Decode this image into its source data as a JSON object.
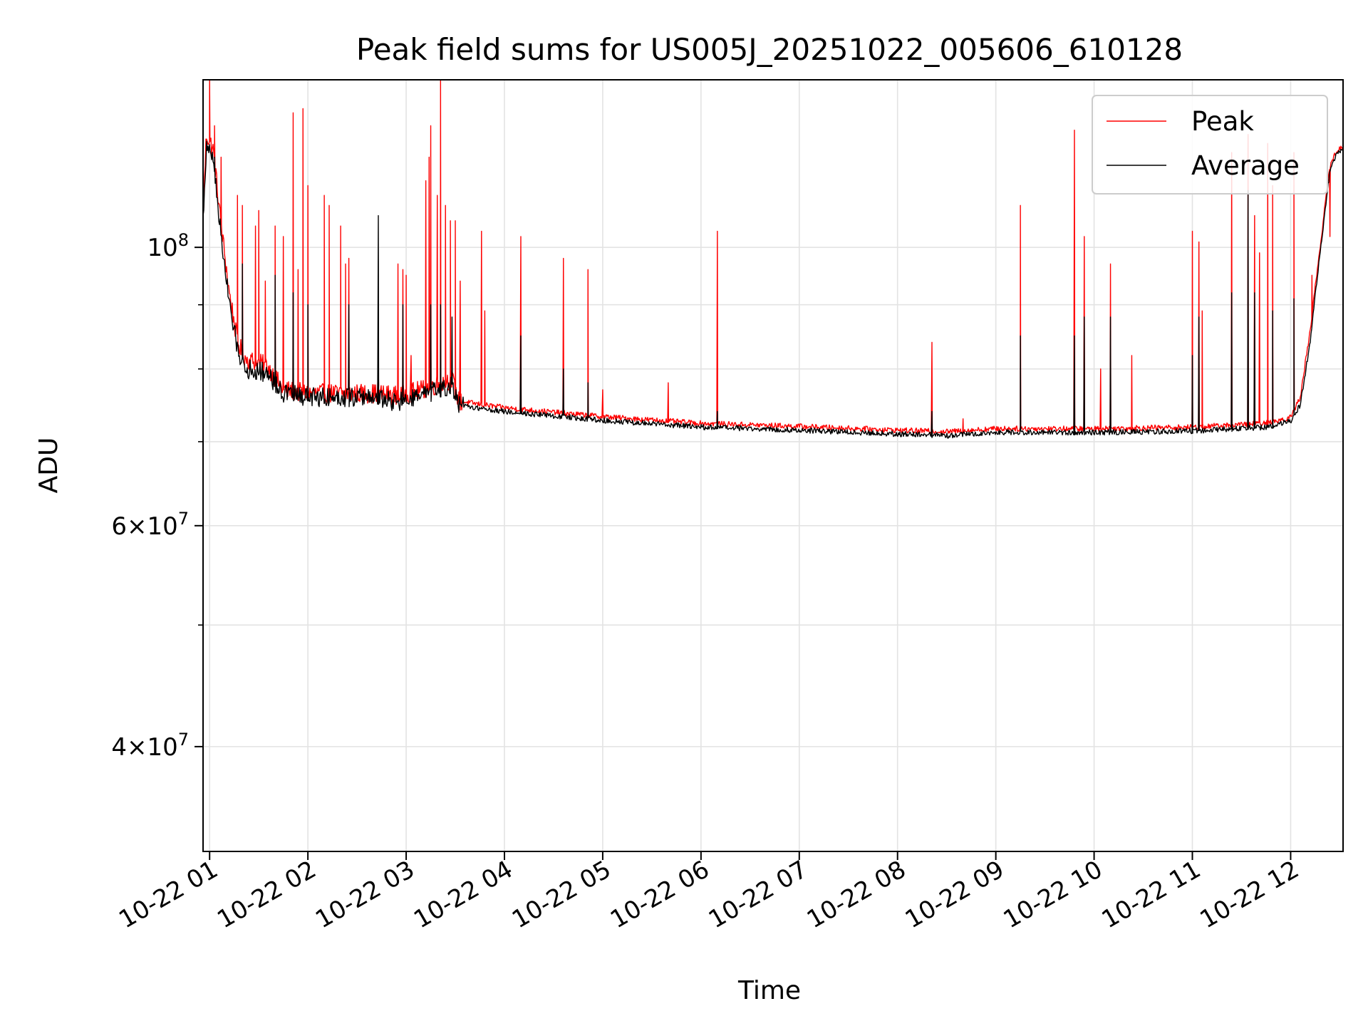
{
  "chart_data": {
    "type": "line",
    "title": "Peak field sums for US005J_20251022_005606_610128",
    "xlabel": "Time",
    "ylabel": "ADU",
    "yscale": "log",
    "ylim": [
      33000000,
      136000000
    ],
    "xlim": [
      "2025-10-22T00:56",
      "2025-10-22T12:32"
    ],
    "grid": true,
    "legend_position": "top-right",
    "x_ticks": [
      {
        "t": "2025-10-22T01:00",
        "label": "10-22 01"
      },
      {
        "t": "2025-10-22T02:00",
        "label": "10-22 02"
      },
      {
        "t": "2025-10-22T03:00",
        "label": "10-22 03"
      },
      {
        "t": "2025-10-22T04:00",
        "label": "10-22 04"
      },
      {
        "t": "2025-10-22T05:00",
        "label": "10-22 05"
      },
      {
        "t": "2025-10-22T06:00",
        "label": "10-22 06"
      },
      {
        "t": "2025-10-22T07:00",
        "label": "10-22 07"
      },
      {
        "t": "2025-10-22T08:00",
        "label": "10-22 08"
      },
      {
        "t": "2025-10-22T09:00",
        "label": "10-22 09"
      },
      {
        "t": "2025-10-22T10:00",
        "label": "10-22 10"
      },
      {
        "t": "2025-10-22T11:00",
        "label": "10-22 11"
      },
      {
        "t": "2025-10-22T12:00",
        "label": "10-22 12"
      }
    ],
    "y_major_ticks": [
      {
        "v": 40000000,
        "base": "4",
        "exp": "7"
      },
      {
        "v": 60000000,
        "base": "6",
        "exp": "7"
      },
      {
        "v": 100000000,
        "base": "",
        "exp": "8"
      }
    ],
    "y_minor_ticks": [
      50000000,
      70000000,
      80000000,
      90000000
    ],
    "series": [
      {
        "name": "Peak",
        "color": "#ff0000",
        "baseline": [
          [
            "2025-10-22T00:56",
            105000000
          ],
          [
            "2025-10-22T00:58",
            123000000
          ],
          [
            "2025-10-22T01:02",
            120000000
          ],
          [
            "2025-10-22T01:07",
            104000000
          ],
          [
            "2025-10-22T01:12",
            92000000
          ],
          [
            "2025-10-22T01:17",
            84000000
          ],
          [
            "2025-10-22T01:22",
            81500000
          ],
          [
            "2025-10-22T01:35",
            80500000
          ],
          [
            "2025-10-22T01:45",
            77000000
          ],
          [
            "2025-10-22T02:00",
            76500000
          ],
          [
            "2025-10-22T02:40",
            76500000
          ],
          [
            "2025-10-22T02:55",
            76200000
          ],
          [
            "2025-10-22T03:10",
            77000000
          ],
          [
            "2025-10-22T03:28",
            78500000
          ],
          [
            "2025-10-22T03:32",
            75400000
          ],
          [
            "2025-10-22T04:00",
            74500000
          ],
          [
            "2025-10-22T05:00",
            73300000
          ],
          [
            "2025-10-22T06:00",
            72400000
          ],
          [
            "2025-10-22T07:00",
            72000000
          ],
          [
            "2025-10-22T08:00",
            71500000
          ],
          [
            "2025-10-22T08:30",
            71300000
          ],
          [
            "2025-10-22T09:00",
            71700000
          ],
          [
            "2025-10-22T10:00",
            71700000
          ],
          [
            "2025-10-22T11:00",
            71900000
          ],
          [
            "2025-10-22T11:45",
            72400000
          ],
          [
            "2025-10-22T12:00",
            73200000
          ],
          [
            "2025-10-22T12:06",
            76000000
          ],
          [
            "2025-10-22T12:12",
            86000000
          ],
          [
            "2025-10-22T12:18",
            100000000
          ],
          [
            "2025-10-22T12:24",
            116000000
          ],
          [
            "2025-10-22T12:28",
            119500000
          ],
          [
            "2025-10-22T12:32",
            120000000
          ]
        ],
        "spikes": [
          [
            "2025-10-22T01:00",
            136000000
          ],
          [
            "2025-10-22T01:03",
            125000000
          ],
          [
            "2025-10-22T01:07",
            118000000
          ],
          [
            "2025-10-22T01:17",
            110000000
          ],
          [
            "2025-10-22T01:20",
            108000000
          ],
          [
            "2025-10-22T01:28",
            104000000
          ],
          [
            "2025-10-22T01:30",
            107000000
          ],
          [
            "2025-10-22T01:34",
            94000000
          ],
          [
            "2025-10-22T01:40",
            104000000
          ],
          [
            "2025-10-22T01:45",
            102000000
          ],
          [
            "2025-10-22T01:51",
            128000000
          ],
          [
            "2025-10-22T01:54",
            96000000
          ],
          [
            "2025-10-22T01:57",
            129000000
          ],
          [
            "2025-10-22T02:00",
            112000000
          ],
          [
            "2025-10-22T02:10",
            110000000
          ],
          [
            "2025-10-22T02:13",
            108000000
          ],
          [
            "2025-10-22T02:20",
            104000000
          ],
          [
            "2025-10-22T02:23",
            97000000
          ],
          [
            "2025-10-22T02:25",
            98000000
          ],
          [
            "2025-10-22T03:00",
            95000000
          ],
          [
            "2025-10-22T03:12",
            113000000
          ],
          [
            "2025-10-22T03:14",
            118000000
          ],
          [
            "2025-10-22T03:15",
            125000000
          ],
          [
            "2025-10-22T03:19",
            110000000
          ],
          [
            "2025-10-22T03:21",
            136000000
          ],
          [
            "2025-10-22T03:24",
            108000000
          ],
          [
            "2025-10-22T03:27",
            105000000
          ],
          [
            "2025-10-22T03:30",
            105000000
          ],
          [
            "2025-10-22T03:33",
            94000000
          ],
          [
            "2025-10-22T03:46",
            103000000
          ],
          [
            "2025-10-22T02:55",
            97000000
          ],
          [
            "2025-10-22T03:48",
            89000000
          ],
          [
            "2025-10-22T02:58",
            96000000
          ],
          [
            "2025-10-22T02:43",
            80500000
          ],
          [
            "2025-10-22T02:55",
            80000000
          ],
          [
            "2025-10-22T03:03",
            82000000
          ],
          [
            "2025-10-22T04:10",
            102000000
          ],
          [
            "2025-10-22T04:36",
            98000000
          ],
          [
            "2025-10-22T04:51",
            96000000
          ],
          [
            "2025-10-22T05:40",
            78000000
          ],
          [
            "2025-10-22T05:00",
            77000000
          ],
          [
            "2025-10-22T06:10",
            103000000
          ],
          [
            "2025-10-22T08:21",
            84000000
          ],
          [
            "2025-10-22T08:40",
            73000000
          ],
          [
            "2025-10-22T09:15",
            108000000
          ],
          [
            "2025-10-22T09:48",
            124000000
          ],
          [
            "2025-10-22T09:54",
            102000000
          ],
          [
            "2025-10-22T10:04",
            80000000
          ],
          [
            "2025-10-22T10:10",
            97000000
          ],
          [
            "2025-10-22T10:23",
            82000000
          ],
          [
            "2025-10-22T11:00",
            103000000
          ],
          [
            "2025-10-22T11:04",
            101000000
          ],
          [
            "2025-10-22T11:06",
            89000000
          ],
          [
            "2025-10-22T11:24",
            119000000
          ],
          [
            "2025-10-22T11:34",
            123000000
          ],
          [
            "2025-10-22T11:38",
            106000000
          ],
          [
            "2025-10-22T11:41",
            99000000
          ],
          [
            "2025-10-22T11:46",
            121000000
          ],
          [
            "2025-10-22T11:49",
            112000000
          ],
          [
            "2025-10-22T12:02",
            119000000
          ],
          [
            "2025-10-22T12:13",
            95000000
          ],
          [
            "2025-10-22T12:24",
            102000000
          ]
        ]
      },
      {
        "name": "Average",
        "color": "#000000",
        "baseline": [
          [
            "2025-10-22T00:56",
            105000000
          ],
          [
            "2025-10-22T00:58",
            120000000
          ],
          [
            "2025-10-22T01:02",
            118000000
          ],
          [
            "2025-10-22T01:07",
            102000000
          ],
          [
            "2025-10-22T01:12",
            90000000
          ],
          [
            "2025-10-22T01:17",
            83000000
          ],
          [
            "2025-10-22T01:22",
            80000000
          ],
          [
            "2025-10-22T01:35",
            79500000
          ],
          [
            "2025-10-22T01:45",
            76500000
          ],
          [
            "2025-10-22T02:00",
            76000000
          ],
          [
            "2025-10-22T02:40",
            76000000
          ],
          [
            "2025-10-22T02:55",
            75200000
          ],
          [
            "2025-10-22T03:10",
            76200000
          ],
          [
            "2025-10-22T03:28",
            77500000
          ],
          [
            "2025-10-22T03:32",
            74800000
          ],
          [
            "2025-10-22T04:00",
            74000000
          ],
          [
            "2025-10-22T05:00",
            72800000
          ],
          [
            "2025-10-22T06:00",
            71900000
          ],
          [
            "2025-10-22T07:00",
            71500000
          ],
          [
            "2025-10-22T08:00",
            71000000
          ],
          [
            "2025-10-22T08:30",
            70800000
          ],
          [
            "2025-10-22T09:00",
            71200000
          ],
          [
            "2025-10-22T10:00",
            71200000
          ],
          [
            "2025-10-22T11:00",
            71400000
          ],
          [
            "2025-10-22T11:45",
            71900000
          ],
          [
            "2025-10-22T12:00",
            72700000
          ],
          [
            "2025-10-22T12:06",
            75000000
          ],
          [
            "2025-10-22T12:12",
            84000000
          ],
          [
            "2025-10-22T12:18",
            99000000
          ],
          [
            "2025-10-22T12:24",
            115000000
          ],
          [
            "2025-10-22T12:28",
            119000000
          ],
          [
            "2025-10-22T12:32",
            119500000
          ]
        ],
        "spikes": [
          [
            "2025-10-22T01:03",
            118000000
          ],
          [
            "2025-10-22T01:20",
            97000000
          ],
          [
            "2025-10-22T01:40",
            95000000
          ],
          [
            "2025-10-22T01:51",
            92000000
          ],
          [
            "2025-10-22T02:00",
            90000000
          ],
          [
            "2025-10-22T02:25",
            90000000
          ],
          [
            "2025-10-22T02:43",
            106000000
          ],
          [
            "2025-10-22T02:58",
            90000000
          ],
          [
            "2025-10-22T03:15",
            90000000
          ],
          [
            "2025-10-22T03:21",
            90000000
          ],
          [
            "2025-10-22T03:28",
            88000000
          ],
          [
            "2025-10-22T04:10",
            85000000
          ],
          [
            "2025-10-22T04:36",
            80000000
          ],
          [
            "2025-10-22T04:51",
            78000000
          ],
          [
            "2025-10-22T06:10",
            74000000
          ],
          [
            "2025-10-22T08:21",
            74000000
          ],
          [
            "2025-10-22T09:15",
            85000000
          ],
          [
            "2025-10-22T09:48",
            85000000
          ],
          [
            "2025-10-22T09:54",
            88000000
          ],
          [
            "2025-10-22T10:10",
            88000000
          ],
          [
            "2025-10-22T11:00",
            82000000
          ],
          [
            "2025-10-22T11:04",
            88000000
          ],
          [
            "2025-10-22T11:24",
            92000000
          ],
          [
            "2025-10-22T11:34",
            111000000
          ],
          [
            "2025-10-22T11:38",
            92000000
          ],
          [
            "2025-10-22T11:49",
            89000000
          ],
          [
            "2025-10-22T12:02",
            91000000
          ]
        ]
      }
    ]
  }
}
